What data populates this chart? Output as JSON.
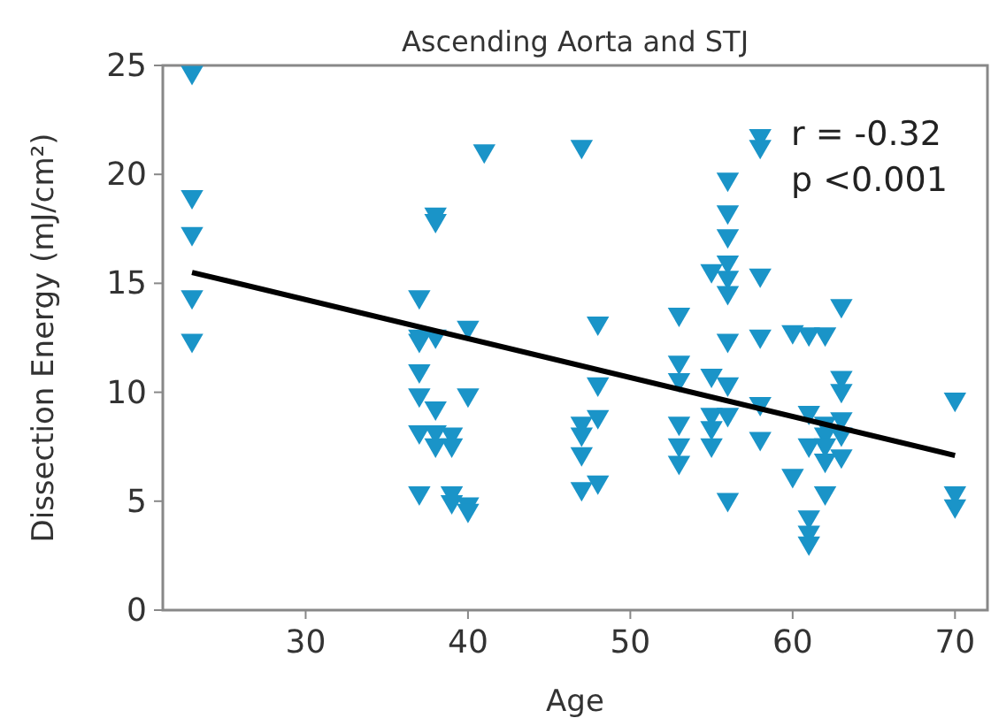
{
  "chart_data": {
    "type": "scatter",
    "title": "Ascending Aorta and STJ",
    "xlabel": "Age",
    "ylabel": "Dissection Energy (mJ/cm²)",
    "xlim": [
      21.2,
      72
    ],
    "ylim": [
      0,
      25
    ],
    "xticks": [
      30,
      40,
      50,
      60,
      70
    ],
    "yticks": [
      0,
      5,
      10,
      15,
      20,
      25
    ],
    "grid": false,
    "annotations": [
      "r = -0.32",
      "p <0.001"
    ],
    "series": [
      {
        "marker": "triangle",
        "color": "#1a94c8",
        "x": [
          23,
          23,
          23,
          23,
          23,
          37,
          37,
          37,
          37,
          37,
          37,
          37,
          38,
          38,
          38,
          38,
          38,
          38,
          39,
          39,
          39,
          39,
          40,
          40,
          40,
          40,
          41,
          47,
          47,
          47,
          47,
          47,
          48,
          48,
          48,
          48,
          53,
          53,
          53,
          53,
          53,
          53,
          55,
          55,
          55,
          55,
          55,
          56,
          56,
          56,
          56,
          56,
          56,
          56,
          56,
          56,
          56,
          58,
          58,
          58,
          58,
          58,
          58,
          60,
          60,
          61,
          61,
          61,
          61,
          61,
          61,
          62,
          62,
          62,
          62,
          62,
          62,
          63,
          63,
          63,
          63,
          63,
          63,
          70,
          70,
          70
        ],
        "values": [
          24.6,
          18.9,
          17.2,
          14.3,
          12.3,
          14.3,
          12.5,
          10.9,
          9.8,
          8.1,
          5.3,
          12.3,
          18.1,
          17.8,
          12.5,
          9.2,
          8.1,
          7.5,
          8.0,
          7.5,
          5.3,
          4.9,
          12.9,
          9.8,
          4.8,
          4.5,
          21.0,
          21.2,
          8.5,
          8.0,
          7.1,
          5.5,
          13.1,
          10.3,
          8.8,
          5.8,
          13.5,
          11.3,
          10.5,
          8.5,
          7.5,
          6.7,
          15.5,
          10.7,
          8.9,
          8.3,
          7.5,
          19.7,
          18.2,
          17.1,
          15.9,
          15.2,
          14.5,
          12.3,
          10.3,
          8.9,
          5.0,
          21.7,
          21.2,
          15.3,
          12.5,
          9.4,
          7.8,
          12.7,
          6.1,
          12.6,
          9.0,
          7.5,
          4.2,
          3.5,
          3.0,
          12.6,
          8.5,
          8.0,
          7.5,
          6.8,
          5.3,
          13.9,
          10.6,
          10.0,
          8.7,
          8.0,
          7.0,
          9.6,
          5.3,
          4.7
        ]
      },
      {
        "type": "line",
        "color": "#000000",
        "x": [
          23,
          70
        ],
        "values": [
          15.5,
          7.1
        ]
      }
    ]
  }
}
